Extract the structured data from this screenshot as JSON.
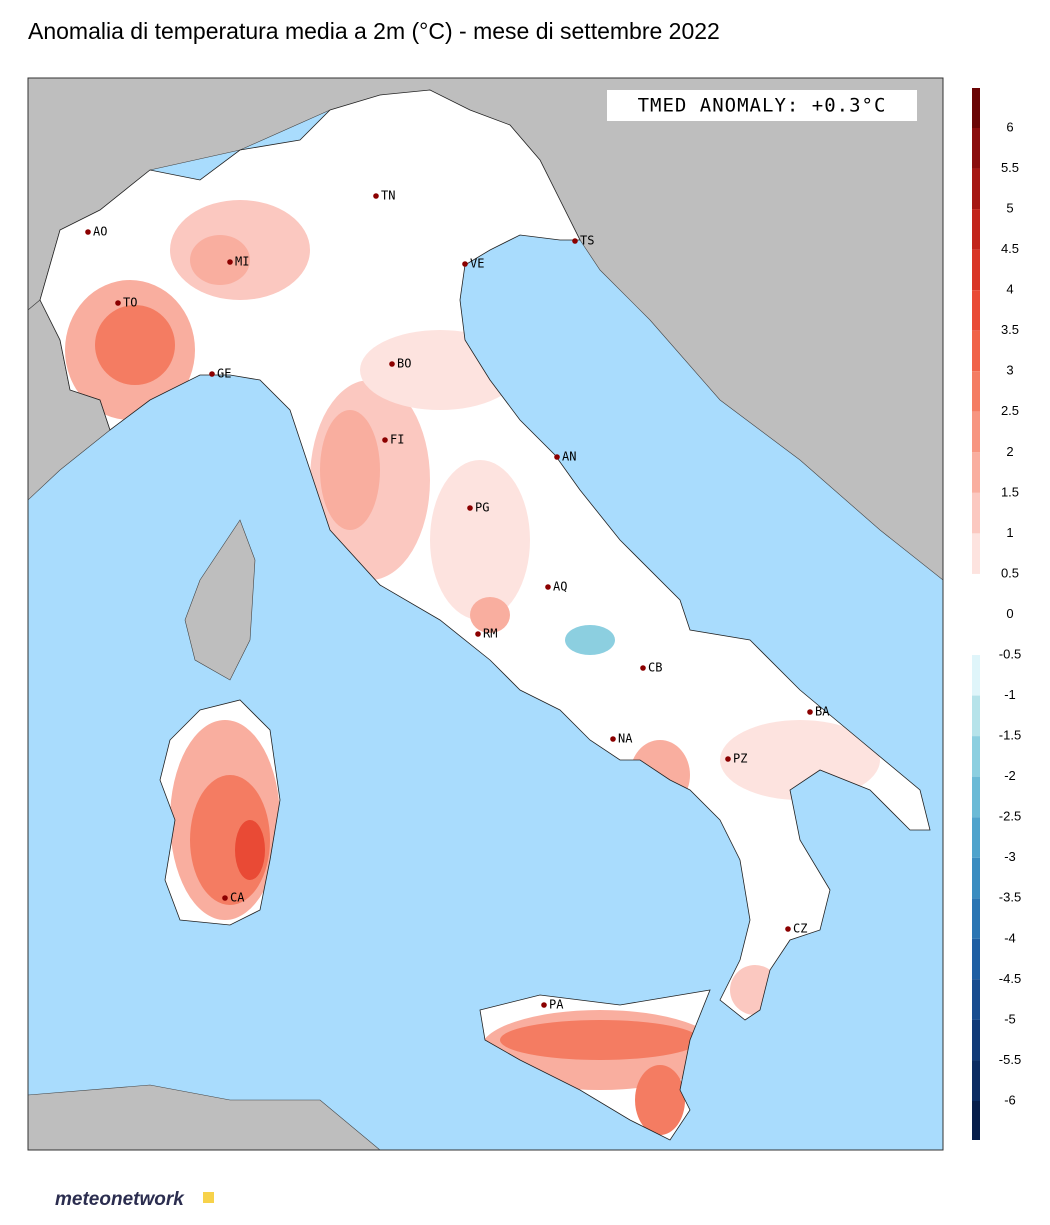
{
  "title": "Anomalia di temperatura media a 2m (°C) - mese di settembre 2022",
  "annotation": "TMED ANOMALY: +0.3°C",
  "cities": [
    "AO",
    "MI",
    "TO",
    "GE",
    "TN",
    "TS",
    "VE",
    "BO",
    "FI",
    "AN",
    "PG",
    "AQ",
    "RM",
    "CB",
    "BA",
    "NA",
    "PZ",
    "CZ",
    "CA",
    "PA"
  ],
  "colorbar": {
    "ticks": [
      6,
      5.5,
      5,
      4.5,
      4,
      3.5,
      3,
      2.5,
      2,
      1.5,
      1,
      0.5,
      0,
      -0.5,
      -1,
      -1.5,
      -2,
      -2.5,
      -3,
      -3.5,
      -4,
      -4.5,
      -5,
      -5.5,
      -6
    ],
    "colors": [
      "#8a0d0d",
      "#a61713",
      "#c2241b",
      "#d93526",
      "#e94a35",
      "#f06248",
      "#f47c62",
      "#f79580",
      "#f9ae9f",
      "#fbc8c0",
      "#fde3df",
      "#ffffff",
      "#ffffff",
      "#dff5fa",
      "#b6e3ea",
      "#8ccfe0",
      "#6bbad6",
      "#4fa3cc",
      "#3a8cc0",
      "#2a75b3",
      "#1f5fa3",
      "#174c8f",
      "#103a78",
      "#0b2c62"
    ],
    "top_color": "#6a0505",
    "bottom_color": "#071e4a"
  },
  "logo": "meteonetwork"
}
